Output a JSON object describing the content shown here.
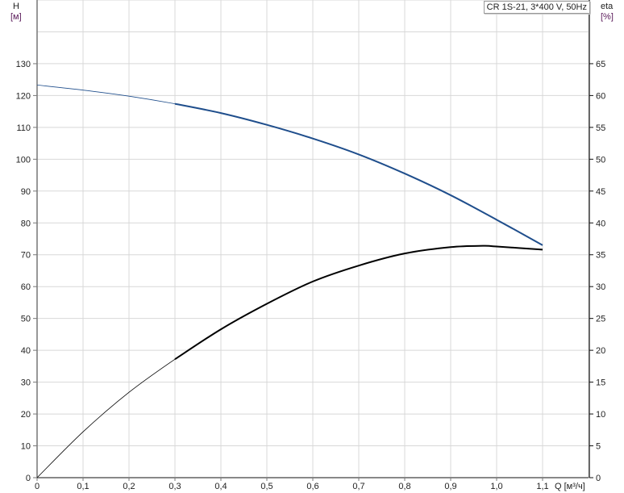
{
  "chart_data": {
    "type": "line",
    "title": "CR 1S-21, 3*400 V, 50Hz",
    "xlabel": "Q [м³/ч]",
    "ylabel": "H",
    "ylabel_unit": "[м]",
    "y2label": "eta",
    "y2label_unit": "[%]",
    "xlim": [
      0,
      1.2
    ],
    "ylim": [
      0,
      150
    ],
    "y2lim": [
      0,
      75
    ],
    "grid": true,
    "x_ticks": [
      "0",
      "0,1",
      "0,2",
      "0,3",
      "0,4",
      "0,5",
      "0,6",
      "0,7",
      "0,8",
      "0,9",
      "1,0",
      "1,1"
    ],
    "y_ticks": [
      "0",
      "10",
      "20",
      "30",
      "40",
      "50",
      "60",
      "70",
      "80",
      "90",
      "100",
      "110",
      "120",
      "130"
    ],
    "y2_ticks": [
      "0",
      "5",
      "10",
      "15",
      "20",
      "25",
      "30",
      "35",
      "40",
      "45",
      "50",
      "55",
      "60",
      "65"
    ],
    "series": [
      {
        "axis": "left",
        "color": "#1f4e8c",
        "x": [
          0,
          0.1,
          0.2,
          0.3,
          0.4,
          0.5,
          0.6,
          0.7,
          0.8,
          0.9,
          1.0,
          1.1
        ],
        "y": [
          123.3,
          121.7,
          119.8,
          117.4,
          114.5,
          110.8,
          106.5,
          101.5,
          95.5,
          88.7,
          81.0,
          73.0
        ]
      },
      {
        "axis": "right",
        "color": "#000000",
        "x": [
          0,
          0.1,
          0.2,
          0.3,
          0.4,
          0.5,
          0.6,
          0.7,
          0.8,
          0.9,
          0.97,
          1.0,
          1.1
        ],
        "y": [
          0,
          7.2,
          13.4,
          18.6,
          23.3,
          27.3,
          30.8,
          33.3,
          35.2,
          36.2,
          36.4,
          36.3,
          35.8
        ]
      }
    ],
    "operating_range_start_q": 0.3
  }
}
